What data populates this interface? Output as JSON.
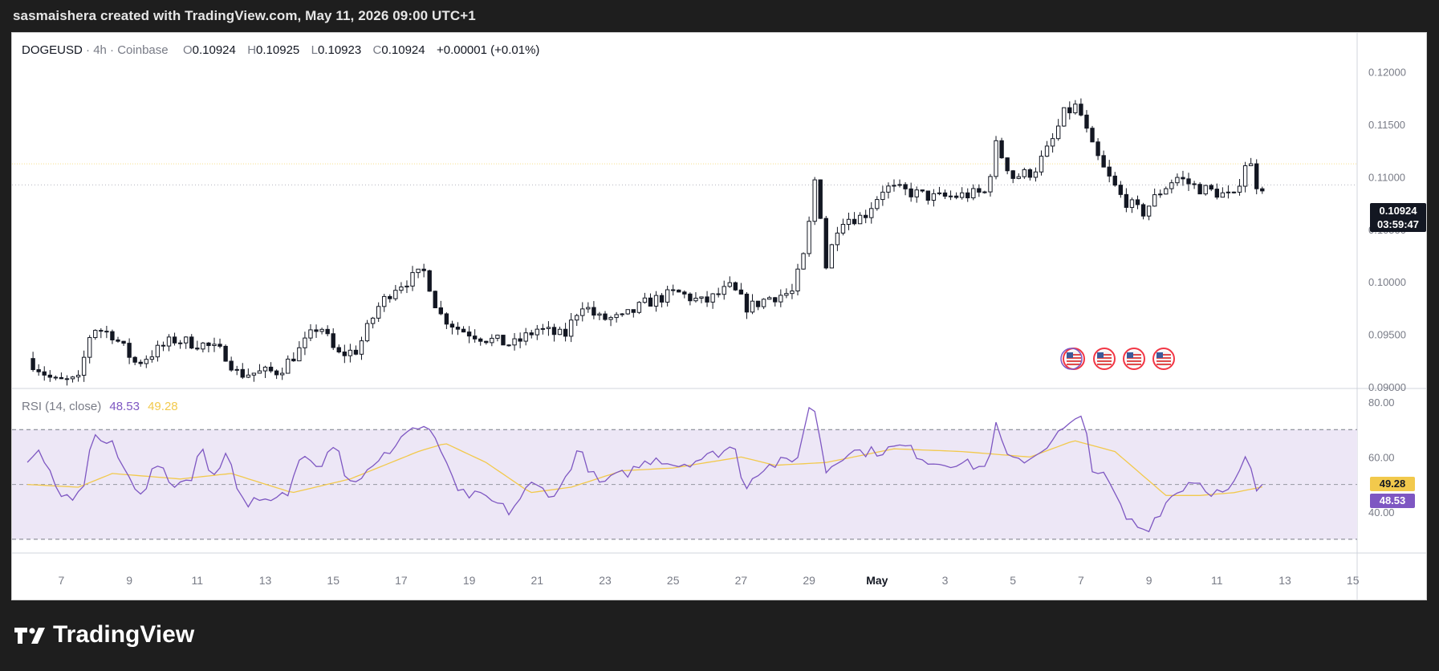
{
  "header": {
    "attribution": "sasmaishera created with TradingView.com, May 11, 2026 09:00 UTC+1"
  },
  "legend": {
    "symbol": "DOGEUSD",
    "interval": "4h",
    "exchange": "Coinbase",
    "open_label": "O",
    "open": "0.10924",
    "high_label": "H",
    "high": "0.10925",
    "low_label": "L",
    "low": "0.10923",
    "close_label": "C",
    "close": "0.10924",
    "change": "+0.00001 (+0.01%)"
  },
  "rsi_legend": {
    "label": "RSI (14, close)",
    "rsi_value": "48.53",
    "ma_value": "49.28"
  },
  "price_tag": {
    "price": "0.10924",
    "countdown": "03:59:47"
  },
  "brand": {
    "name": "TradingView"
  },
  "colors": {
    "up": "#ffffff",
    "down": "#131722",
    "rsi_line": "#7e57c2",
    "rsi_ma": "#f2c94c",
    "rsi_band": "#ede7f6",
    "highlight_line": "#f7e08a"
  },
  "chart_data": [
    {
      "type": "candlestick",
      "symbol": "DOGEUSD",
      "y_ticks": [
        "0.12000",
        "0.11500",
        "0.11000",
        "0.10500",
        "0.10000",
        "0.09500",
        "0.09000"
      ],
      "ylim": [
        0.09,
        0.1215
      ],
      "x_ticks": [
        "7",
        "9",
        "11",
        "13",
        "15",
        "17",
        "19",
        "21",
        "23",
        "25",
        "27",
        "29",
        "May",
        "3",
        "5",
        "7",
        "9",
        "11",
        "13",
        "15"
      ],
      "horizontal_line": 0.11125,
      "last_price": 0.10924,
      "close_path": [
        {
          "day": 6.0,
          "close": 0.0927
        },
        {
          "day": 6.8,
          "close": 0.0905
        },
        {
          "day": 7.5,
          "close": 0.0906
        },
        {
          "day": 7.9,
          "close": 0.0957
        },
        {
          "day": 8.5,
          "close": 0.095
        },
        {
          "day": 9.2,
          "close": 0.0922
        },
        {
          "day": 10.3,
          "close": 0.0945
        },
        {
          "day": 11.2,
          "close": 0.094
        },
        {
          "day": 11.8,
          "close": 0.0932
        },
        {
          "day": 12.2,
          "close": 0.0912
        },
        {
          "day": 13.4,
          "close": 0.0915
        },
        {
          "day": 14.0,
          "close": 0.0935
        },
        {
          "day": 14.6,
          "close": 0.096
        },
        {
          "day": 15.1,
          "close": 0.093
        },
        {
          "day": 15.7,
          "close": 0.0935
        },
        {
          "day": 16.3,
          "close": 0.0975
        },
        {
          "day": 16.8,
          "close": 0.0995
        },
        {
          "day": 17.4,
          "close": 0.1005
        },
        {
          "day": 17.7,
          "close": 0.101
        },
        {
          "day": 18.1,
          "close": 0.097
        },
        {
          "day": 18.7,
          "close": 0.0955
        },
        {
          "day": 19.6,
          "close": 0.0945
        },
        {
          "day": 20.3,
          "close": 0.094
        },
        {
          "day": 21.0,
          "close": 0.0955
        },
        {
          "day": 21.8,
          "close": 0.0948
        },
        {
          "day": 22.3,
          "close": 0.098
        },
        {
          "day": 22.8,
          "close": 0.0965
        },
        {
          "day": 23.5,
          "close": 0.0965
        },
        {
          "day": 24.2,
          "close": 0.098
        },
        {
          "day": 25.1,
          "close": 0.099
        },
        {
          "day": 25.9,
          "close": 0.098
        },
        {
          "day": 26.7,
          "close": 0.0995
        },
        {
          "day": 27.2,
          "close": 0.0975
        },
        {
          "day": 27.8,
          "close": 0.0985
        },
        {
          "day": 28.5,
          "close": 0.099
        },
        {
          "day": 28.9,
          "close": 0.103
        },
        {
          "day": 29.2,
          "close": 0.1105
        },
        {
          "day": 29.5,
          "close": 0.1015
        },
        {
          "day": 29.9,
          "close": 0.106
        },
        {
          "day": 30.6,
          "close": 0.1062
        },
        {
          "day": 31.2,
          "close": 0.109
        },
        {
          "day": 32.0,
          "close": 0.1085
        },
        {
          "day": 32.7,
          "close": 0.108
        },
        {
          "day": 33.4,
          "close": 0.1082
        },
        {
          "day": 34.2,
          "close": 0.1085
        },
        {
          "day": 34.5,
          "close": 0.113
        },
        {
          "day": 35.0,
          "close": 0.11
        },
        {
          "day": 35.6,
          "close": 0.1105
        },
        {
          "day": 36.1,
          "close": 0.113
        },
        {
          "day": 36.5,
          "close": 0.116
        },
        {
          "day": 36.9,
          "close": 0.1168
        },
        {
          "day": 37.3,
          "close": 0.113
        },
        {
          "day": 37.7,
          "close": 0.1105
        },
        {
          "day": 38.2,
          "close": 0.108
        },
        {
          "day": 38.8,
          "close": 0.1065
        },
        {
          "day": 39.3,
          "close": 0.1085
        },
        {
          "day": 39.8,
          "close": 0.11
        },
        {
          "day": 40.4,
          "close": 0.109
        },
        {
          "day": 41.0,
          "close": 0.1085
        },
        {
          "day": 41.5,
          "close": 0.108
        },
        {
          "day": 41.9,
          "close": 0.112
        },
        {
          "day": 42.2,
          "close": 0.109
        },
        {
          "day": 42.4,
          "close": 0.10924
        }
      ]
    },
    {
      "type": "line",
      "title": "RSI (14, close)",
      "y_ticks": [
        "80.00",
        "60.00",
        "40.00"
      ],
      "ylim": [
        25,
        85
      ],
      "band": [
        30,
        70
      ],
      "midline": 50,
      "current_rsi": 48.53,
      "current_ma": 49.28,
      "rsi_path": [
        {
          "day": 6.0,
          "value": 57
        },
        {
          "day": 6.4,
          "value": 63
        },
        {
          "day": 6.9,
          "value": 45
        },
        {
          "day": 7.6,
          "value": 46
        },
        {
          "day": 7.9,
          "value": 68
        },
        {
          "day": 8.5,
          "value": 64
        },
        {
          "day": 9.0,
          "value": 52
        },
        {
          "day": 9.4,
          "value": 47
        },
        {
          "day": 9.8,
          "value": 58
        },
        {
          "day": 10.2,
          "value": 50
        },
        {
          "day": 10.8,
          "value": 52
        },
        {
          "day": 11.1,
          "value": 64
        },
        {
          "day": 11.4,
          "value": 53
        },
        {
          "day": 11.9,
          "value": 62
        },
        {
          "day": 12.3,
          "value": 44
        },
        {
          "day": 13.1,
          "value": 43
        },
        {
          "day": 13.7,
          "value": 47
        },
        {
          "day": 14.1,
          "value": 63
        },
        {
          "day": 14.6,
          "value": 57
        },
        {
          "day": 15.1,
          "value": 67
        },
        {
          "day": 15.4,
          "value": 50
        },
        {
          "day": 16.2,
          "value": 56
        },
        {
          "day": 16.7,
          "value": 63
        },
        {
          "day": 17.2,
          "value": 70
        },
        {
          "day": 17.7,
          "value": 71
        },
        {
          "day": 18.3,
          "value": 60
        },
        {
          "day": 18.6,
          "value": 47
        },
        {
          "day": 19.5,
          "value": 45
        },
        {
          "day": 20.2,
          "value": 40
        },
        {
          "day": 20.8,
          "value": 50
        },
        {
          "day": 21.6,
          "value": 46
        },
        {
          "day": 22.2,
          "value": 63
        },
        {
          "day": 22.8,
          "value": 50
        },
        {
          "day": 23.6,
          "value": 54
        },
        {
          "day": 24.5,
          "value": 60
        },
        {
          "day": 25.1,
          "value": 57
        },
        {
          "day": 26.0,
          "value": 60
        },
        {
          "day": 26.8,
          "value": 64
        },
        {
          "day": 27.1,
          "value": 49
        },
        {
          "day": 27.5,
          "value": 55
        },
        {
          "day": 28.1,
          "value": 58
        },
        {
          "day": 28.6,
          "value": 58
        },
        {
          "day": 29.1,
          "value": 82
        },
        {
          "day": 29.5,
          "value": 55
        },
        {
          "day": 30.1,
          "value": 62
        },
        {
          "day": 31.0,
          "value": 62
        },
        {
          "day": 31.8,
          "value": 64
        },
        {
          "day": 32.6,
          "value": 58
        },
        {
          "day": 33.4,
          "value": 58
        },
        {
          "day": 34.2,
          "value": 56
        },
        {
          "day": 34.5,
          "value": 71
        },
        {
          "day": 34.9,
          "value": 58
        },
        {
          "day": 35.6,
          "value": 60
        },
        {
          "day": 36.2,
          "value": 67
        },
        {
          "day": 36.7,
          "value": 72
        },
        {
          "day": 37.1,
          "value": 74
        },
        {
          "day": 37.3,
          "value": 57
        },
        {
          "day": 37.8,
          "value": 51
        },
        {
          "day": 38.3,
          "value": 38
        },
        {
          "day": 38.9,
          "value": 33
        },
        {
          "day": 39.6,
          "value": 45
        },
        {
          "day": 40.3,
          "value": 52
        },
        {
          "day": 40.9,
          "value": 47
        },
        {
          "day": 41.4,
          "value": 47
        },
        {
          "day": 41.9,
          "value": 61
        },
        {
          "day": 42.1,
          "value": 48
        },
        {
          "day": 42.4,
          "value": 48.53
        }
      ],
      "ma_path": [
        {
          "day": 6.0,
          "value": 50
        },
        {
          "day": 7.5,
          "value": 49
        },
        {
          "day": 8.5,
          "value": 54
        },
        {
          "day": 10.5,
          "value": 52
        },
        {
          "day": 12.0,
          "value": 54
        },
        {
          "day": 13.8,
          "value": 47
        },
        {
          "day": 15.5,
          "value": 52
        },
        {
          "day": 17.5,
          "value": 62
        },
        {
          "day": 18.3,
          "value": 65
        },
        {
          "day": 19.5,
          "value": 58
        },
        {
          "day": 20.8,
          "value": 47
        },
        {
          "day": 22.0,
          "value": 49
        },
        {
          "day": 23.5,
          "value": 55
        },
        {
          "day": 25.0,
          "value": 56
        },
        {
          "day": 27.0,
          "value": 60
        },
        {
          "day": 28.0,
          "value": 57
        },
        {
          "day": 29.5,
          "value": 58
        },
        {
          "day": 31.5,
          "value": 63
        },
        {
          "day": 33.5,
          "value": 62
        },
        {
          "day": 35.5,
          "value": 60
        },
        {
          "day": 36.8,
          "value": 66
        },
        {
          "day": 38.0,
          "value": 62
        },
        {
          "day": 39.5,
          "value": 46
        },
        {
          "day": 40.5,
          "value": 46
        },
        {
          "day": 41.5,
          "value": 47
        },
        {
          "day": 42.4,
          "value": 49.28
        }
      ]
    }
  ]
}
